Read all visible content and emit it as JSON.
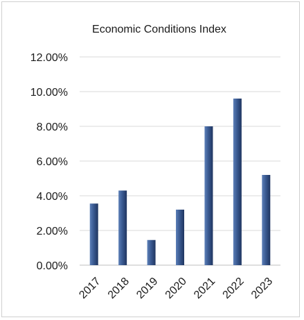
{
  "chart_data": {
    "type": "bar",
    "title": "Economic Conditions Index",
    "categories": [
      "2017",
      "2018",
      "2019",
      "2020",
      "2021",
      "2022",
      "2023"
    ],
    "values": [
      3.55,
      4.3,
      1.45,
      3.2,
      8.0,
      9.6,
      5.2
    ],
    "ylim": [
      0,
      12
    ],
    "yticks": [
      "0.00%",
      "2.00%",
      "4.00%",
      "6.00%",
      "8.00%",
      "10.00%",
      "12.00%"
    ],
    "ytick_values": [
      0,
      2,
      4,
      6,
      8,
      10,
      12
    ],
    "xlabel": "",
    "ylabel": "",
    "grid": true,
    "legend": "none",
    "bar_color": "#2e4a7d"
  }
}
